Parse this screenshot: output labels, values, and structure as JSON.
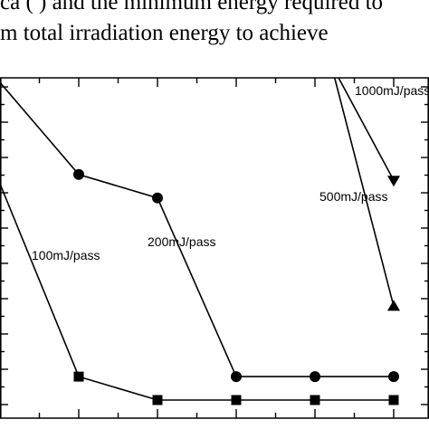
{
  "caption": {
    "line1": "ca (  ) and the minimum energy required to ",
    "line2": "m  total  irradiation  energy  to  achieve"
  },
  "chart_data": {
    "type": "line",
    "x": [
      0,
      2,
      4,
      6,
      8,
      10
    ],
    "xlim": [
      -2,
      10
    ],
    "ylim": [
      0,
      11
    ],
    "series": [
      {
        "name": "100mJ/pass",
        "marker": "square",
        "x": [
          -1.1,
          2,
          4,
          6,
          8,
          10
        ],
        "y": [
          11,
          0.8,
          0,
          0,
          0,
          0
        ]
      },
      {
        "name": "200mJ/pass",
        "marker": "circle",
        "x": [
          -0.1,
          2,
          4,
          6,
          8,
          10
        ],
        "y": [
          11,
          7.7,
          6.9,
          0.8,
          0.8,
          0.8
        ]
      },
      {
        "name": "500mJ/pass",
        "marker": "triangle-up",
        "x": [
          8.5,
          10
        ],
        "y": [
          11,
          3.2
        ]
      },
      {
        "name": "1000mJ/pass",
        "marker": "triangle-down",
        "x": [
          8.6,
          10
        ],
        "y": [
          11,
          7.5
        ]
      }
    ],
    "labels": [
      "100mJ/pass",
      "200mJ/pass",
      "500mJ/pass",
      "1000mJ/pass"
    ],
    "grid": false
  }
}
